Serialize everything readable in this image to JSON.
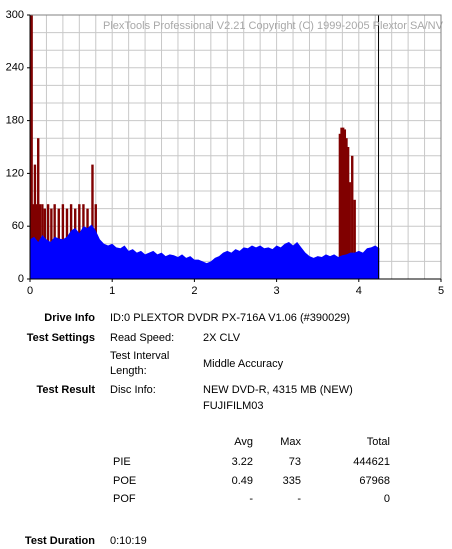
{
  "chart_data": {
    "type": "pie-scan",
    "watermark": "PlexTools Professional V2.21 Copyright (C) 1999-2005 Plextor SA/NV",
    "xlim": [
      0,
      5
    ],
    "xticks": [
      0,
      1,
      2,
      3,
      4,
      5
    ],
    "ylim": [
      0,
      300
    ],
    "yticks": [
      0,
      60,
      120,
      180,
      240,
      300
    ],
    "xgrid": [
      0.2,
      0.4,
      0.6,
      0.8,
      1,
      1.2,
      1.4,
      1.6,
      1.8,
      2,
      2.2,
      2.4,
      2.6,
      2.8,
      3,
      3.2,
      3.4,
      3.6,
      3.8,
      4,
      4.2,
      4.4,
      4.6,
      4.8
    ],
    "ygrid": [
      20,
      40,
      60,
      80,
      100,
      120,
      140,
      160,
      180,
      200,
      220,
      240,
      260,
      280
    ],
    "end_marker": 4.24,
    "series": [
      {
        "color": "#800000",
        "style": "bars",
        "x": [
          0.02,
          0.04,
          0.06,
          0.08,
          0.1,
          0.12,
          0.15,
          0.18,
          0.22,
          0.26,
          0.3,
          0.35,
          0.4,
          0.45,
          0.5,
          0.55,
          0.6,
          0.65,
          0.7,
          0.76,
          0.8,
          3.77,
          3.79,
          3.81,
          3.83,
          3.85,
          3.87,
          3.89,
          3.92,
          3.95
        ],
        "values": [
          300,
          85,
          130,
          85,
          160,
          85,
          85,
          80,
          85,
          80,
          85,
          80,
          85,
          80,
          85,
          80,
          85,
          85,
          80,
          130,
          85,
          165,
          172,
          172,
          170,
          160,
          150,
          110,
          140,
          90
        ]
      },
      {
        "color": "#0000ff",
        "style": "area",
        "x": [
          0,
          0.05,
          0.1,
          0.15,
          0.2,
          0.25,
          0.3,
          0.35,
          0.4,
          0.45,
          0.5,
          0.55,
          0.6,
          0.65,
          0.7,
          0.75,
          0.8,
          0.85,
          0.9,
          0.95,
          1,
          1.05,
          1.1,
          1.15,
          1.2,
          1.25,
          1.3,
          1.35,
          1.4,
          1.45,
          1.5,
          1.55,
          1.6,
          1.65,
          1.7,
          1.75,
          1.8,
          1.85,
          1.9,
          1.95,
          2,
          2.05,
          2.1,
          2.15,
          2.2,
          2.25,
          2.3,
          2.35,
          2.4,
          2.45,
          2.5,
          2.55,
          2.6,
          2.65,
          2.7,
          2.75,
          2.8,
          2.85,
          2.9,
          2.95,
          3,
          3.05,
          3.1,
          3.15,
          3.2,
          3.25,
          3.3,
          3.35,
          3.4,
          3.45,
          3.5,
          3.55,
          3.6,
          3.65,
          3.7,
          3.75,
          3.8,
          3.85,
          3.9,
          3.95,
          4,
          4.05,
          4.1,
          4.15,
          4.2,
          4.25
        ],
        "values": [
          45,
          48,
          42,
          50,
          45,
          42,
          48,
          46,
          45,
          48,
          55,
          58,
          52,
          60,
          58,
          62,
          55,
          45,
          40,
          38,
          40,
          36,
          35,
          38,
          32,
          34,
          30,
          32,
          28,
          30,
          32,
          28,
          30,
          26,
          28,
          27,
          25,
          28,
          24,
          26,
          22,
          22,
          20,
          18,
          20,
          24,
          26,
          30,
          32,
          30,
          34,
          32,
          36,
          35,
          38,
          36,
          38,
          35,
          36,
          34,
          38,
          36,
          40,
          42,
          38,
          42,
          36,
          30,
          26,
          24,
          26,
          25,
          28,
          26,
          28,
          25,
          27,
          28,
          30,
          30,
          32,
          30,
          35,
          36,
          38,
          35
        ]
      }
    ]
  },
  "report": {
    "drive_info": {
      "label": "Drive Info",
      "value": "ID:0 PLEXTOR DVDR PX-716A V1.06 (#390029)"
    },
    "test_settings": {
      "label": "Test Settings",
      "read_speed": {
        "label": "Read Speed:",
        "value": "2X CLV"
      },
      "interval": {
        "label": [
          "Test Interval",
          "Length:"
        ],
        "value": "Middle Accuracy"
      }
    },
    "test_result": {
      "label": "Test Result",
      "disc_info": {
        "label": "Disc Info:",
        "value": [
          "NEW DVD-R, 4315 MB (NEW)",
          "FUJIFILM03"
        ]
      }
    },
    "table": {
      "headers": [
        "Avg",
        "Max",
        "Total"
      ],
      "rows": [
        [
          "PIE",
          3.22,
          73,
          444621
        ],
        [
          "POE",
          0.49,
          335,
          67968
        ],
        [
          "POF",
          "-",
          "-",
          0
        ]
      ]
    },
    "test_duration": {
      "label": "Test Duration",
      "value": "0:10:19"
    }
  }
}
